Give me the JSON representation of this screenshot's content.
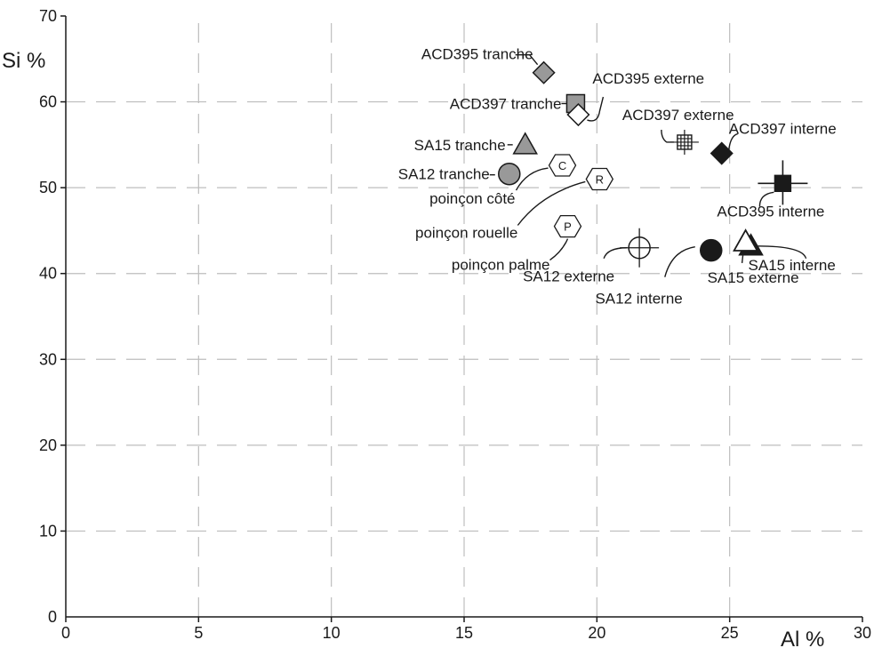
{
  "chart_data": {
    "type": "scatter",
    "xlabel": "Al %",
    "ylabel": "Si %",
    "xlim": [
      0,
      30
    ],
    "ylim": [
      0,
      70
    ],
    "x_ticks": [
      "0",
      "5",
      "10",
      "15",
      "20",
      "25",
      "30"
    ],
    "y_ticks": [
      "0",
      "10",
      "20",
      "30",
      "40",
      "50",
      "60",
      "70"
    ],
    "grid": "dashed",
    "points": [
      {
        "label": "ACD395 tranche",
        "x": 18.0,
        "y": 63.4,
        "marker": "diamond",
        "fill": "#999999"
      },
      {
        "label": "ACD397 tranche",
        "x": 19.2,
        "y": 59.8,
        "marker": "square",
        "fill": "#999999"
      },
      {
        "label": "ACD395 externe",
        "x": 19.3,
        "y": 58.5,
        "marker": "diamond",
        "fill": "#ffffff"
      },
      {
        "label": "ACD397 externe",
        "x": 23.3,
        "y": 55.3,
        "marker": "square-cross",
        "fill": "#ffffff"
      },
      {
        "label": "ACD397 interne",
        "x": 24.7,
        "y": 54.0,
        "marker": "diamond",
        "fill": "#1a1a1a"
      },
      {
        "label": "SA15 tranche",
        "x": 17.3,
        "y": 55.0,
        "marker": "triangle",
        "fill": "#999999"
      },
      {
        "label": "SA12 tranche",
        "x": 16.7,
        "y": 51.6,
        "marker": "circle",
        "fill": "#999999"
      },
      {
        "label": "poinçon côté",
        "x": 18.7,
        "y": 52.6,
        "marker": "hexagon",
        "text": "C"
      },
      {
        "label": "poinçon rouelle",
        "x": 20.1,
        "y": 51.0,
        "marker": "hexagon",
        "text": "R"
      },
      {
        "label": "poinçon palme",
        "x": 18.9,
        "y": 45.5,
        "marker": "hexagon",
        "text": "P"
      },
      {
        "label": "ACD395 interne",
        "x": 27.0,
        "y": 50.5,
        "marker": "square-cross",
        "fill": "#1a1a1a"
      },
      {
        "label": "SA12 externe",
        "x": 21.6,
        "y": 43.0,
        "marker": "circle-cross",
        "fill": "#ffffff"
      },
      {
        "label": "SA12 interne",
        "x": 24.3,
        "y": 42.7,
        "marker": "circle",
        "fill": "#1a1a1a"
      },
      {
        "label": "SA15 interne",
        "x": 25.8,
        "y": 43.2,
        "marker": "triangle",
        "fill": "#1a1a1a"
      },
      {
        "label": "SA15 externe",
        "x": 25.6,
        "y": 43.7,
        "marker": "triangle",
        "fill": "#ffffff"
      }
    ]
  }
}
